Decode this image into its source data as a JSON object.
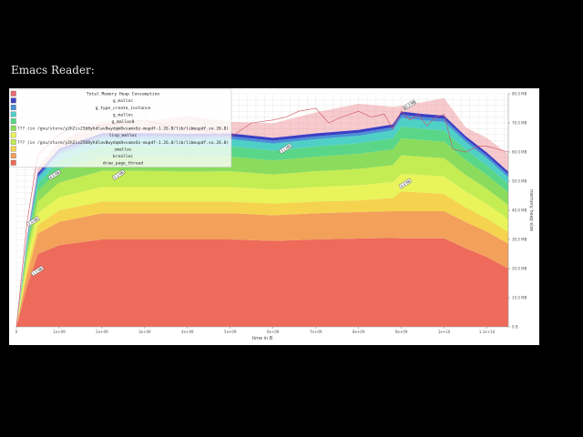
{
  "page": {
    "heading": "Emacs Reader:"
  },
  "chart_data": {
    "type": "area",
    "title": "Total Memory Heap Consumption",
    "xlabel": "time in B",
    "ylabel": "memory heap size",
    "x_tick_labels": [
      "0",
      "1e+09",
      "2e+09",
      "3e+09",
      "4e+09",
      "5e+09",
      "6e+09",
      "7e+09",
      "8e+09",
      "9e+09",
      "1e+10",
      "1.1e+10"
    ],
    "x_ticks": [
      0,
      1000000000.0,
      2000000000.0,
      3000000000.0,
      4000000000.0,
      5000000000.0,
      6000000000.0,
      7000000000.0,
      8000000000.0,
      9000000000.0,
      10000000000.0,
      11000000000.0
    ],
    "xlim": [
      0,
      11500000000.0
    ],
    "y_tick_labels": [
      "0 B",
      "10.0 MB",
      "20.0 MB",
      "30.0 MB",
      "40.0 MB",
      "50.0 MB",
      "60.0 MB",
      "70.0 MB",
      "80.0 MB"
    ],
    "y_ticks": [
      0,
      10,
      20,
      30,
      40,
      50,
      60,
      70,
      80
    ],
    "ylim": [
      0,
      80
    ],
    "y_unit": "MB",
    "grid": true,
    "legend_position": "top-left",
    "x": [
      0,
      250000000.0,
      500000000.0,
      1000000000.0,
      2000000000.0,
      3000000000.0,
      4000000000.0,
      5000000000.0,
      6000000000.0,
      7000000000.0,
      8000000000.0,
      8800000000.0,
      9000000000.0,
      9500000000.0,
      10000000000.0,
      10500000000.0,
      11000000000.0,
      11500000000.0
    ],
    "series": [
      {
        "name": "draw_page_thread",
        "color": "#ee6a5a",
        "values": [
          0,
          14,
          25,
          28,
          30,
          30,
          30,
          30,
          29.5,
          30,
          30.3,
          30.5,
          30.4,
          30.4,
          30.4,
          27,
          24,
          20
        ]
      },
      {
        "name": "kreallec",
        "color": "#f2a05a",
        "values": [
          0,
          4,
          7,
          8,
          9,
          9,
          9,
          9,
          8.8,
          9,
          9.1,
          9.2,
          9.3,
          9.3,
          9.3,
          9,
          8.7,
          8.5
        ]
      },
      {
        "name": "zmalloc",
        "color": "#f5d34e",
        "values": [
          0,
          2,
          3,
          4,
          4,
          4,
          4,
          4,
          4,
          4,
          4,
          4.5,
          6.8,
          6.4,
          5.9,
          5,
          4.5,
          4
        ]
      },
      {
        "name": "lisp_malloc",
        "color": "#e8f45a",
        "values": [
          0,
          2.5,
          4,
          4.5,
          5,
          5,
          5,
          5,
          4.8,
          5,
          5.2,
          5.5,
          6,
          6,
          6,
          5.5,
          5,
          4.5
        ]
      },
      {
        "name": "??? (in /gnu/store/y2h2is2568yhdlav8wydqm8vsamx6z-mupdf-1.26.8/lib/libmupdf.so.26.8)",
        "color": "#c4ec53",
        "values": [
          0,
          2.5,
          4,
          5,
          5.5,
          5.5,
          5.3,
          5.4,
          5.2,
          5.4,
          5.6,
          5.8,
          6.4,
          6.3,
          6.3,
          5.7,
          5.2,
          4.8
        ]
      },
      {
        "name": "??? (in /gnu/store/y2h2is2568yhdlav8wydqm8vsamx6z-mupdf-1.26.8/lib/libmupdf.so.26.8)",
        "color": "#8bdc5c",
        "values": [
          0,
          2,
          3.5,
          4.5,
          5,
          5,
          5,
          5,
          4.8,
          5,
          5.2,
          5.4,
          5.8,
          5.7,
          5.6,
          5.1,
          4.7,
          4.3
        ]
      },
      {
        "name": "g_malloc0",
        "color": "#5ad688",
        "values": [
          0,
          1.5,
          2.5,
          3,
          3.5,
          3.5,
          3.5,
          3.5,
          3.4,
          3.5,
          3.6,
          3.8,
          4,
          3.9,
          3.9,
          3.6,
          3.3,
          3
        ]
      },
      {
        "name": "g_malloc",
        "color": "#4fd0c6",
        "values": [
          0,
          1,
          2,
          2.3,
          2.5,
          2.5,
          2.5,
          2.5,
          2.4,
          2.5,
          2.6,
          2.8,
          3,
          2.9,
          2.9,
          2.6,
          2.4,
          2.2
        ]
      },
      {
        "name": "g_type_create_instance",
        "color": "#4a90d6",
        "values": [
          0,
          0.5,
          0.8,
          0.9,
          1,
          1,
          1,
          1,
          1,
          1,
          1,
          1,
          1.1,
          1.1,
          1.1,
          1,
          1,
          1
        ]
      },
      {
        "name": "g_malloc",
        "color": "#3b3fc4",
        "values": [
          0,
          0.6,
          0.9,
          1,
          1,
          1,
          1,
          1,
          1,
          1,
          1,
          1,
          1.1,
          1.1,
          1.1,
          1,
          1,
          1
        ]
      },
      {
        "name": "Total Memory Heap Consumption",
        "color": "#e86a72",
        "values": [
          0,
          1,
          2,
          2.5,
          4,
          4,
          6,
          4,
          5,
          7.2,
          9,
          6,
          2,
          4,
          6,
          3,
          5,
          6
        ]
      }
    ],
    "total_points": {
      "x": [
        0,
        250000000.0,
        500000000.0,
        1000000000.0,
        1500000000.0,
        2000000000.0,
        2500000000.0,
        3000000000.0,
        3500000000.0,
        4000000000.0,
        4500000000.0,
        5000000000.0,
        5500000000.0,
        6000000000.0,
        6300000000.0,
        6600000000.0,
        7000000000.0,
        7300000000.0,
        7600000000.0,
        8000000000.0,
        8300000000.0,
        8600000000.0,
        8800000000.0,
        9000000000.0,
        9200000000.0,
        9400000000.0,
        9600000000.0,
        9800000000.0,
        10000000000.0,
        10200000000.0,
        10500000000.0,
        10800000000.0,
        11000000000.0,
        11500000000.0
      ],
      "y": [
        0,
        36,
        59,
        66,
        70,
        69,
        70,
        71,
        69,
        68,
        67,
        65,
        70,
        71,
        72,
        74,
        75,
        70,
        72,
        74,
        72,
        73,
        68,
        74,
        71,
        73,
        69,
        72,
        73,
        61,
        60,
        62,
        62,
        60
      ]
    },
    "legend": [
      {
        "name": "Total Memory Heap Consumption",
        "color": "#e86a72"
      },
      {
        "name": "g_malloc",
        "color": "#3b3fc4"
      },
      {
        "name": "g_type_create_instance",
        "color": "#4a90d6"
      },
      {
        "name": "g_malloc",
        "color": "#4fd0c6"
      },
      {
        "name": "g_malloc0",
        "color": "#5ad688"
      },
      {
        "name": "??? (in /gnu/store/y2h2is2568yhdlav8wydqm8vsamx6z-mupdf-1.26.8/lib/libmupdf.so.26.8)",
        "color": "#8bdc5c"
      },
      {
        "name": "lisp_malloc",
        "color": "#e8f45a"
      },
      {
        "name": "??? (in /gnu/store/y2h2is2568yhdlav8wydqm8vsamx6z-mupdf-1.26.8/lib/libmupdf.so.26.8)",
        "color": "#c4ec53"
      },
      {
        "name": "zmalloc",
        "color": "#f5d34e"
      },
      {
        "name": "kreallec",
        "color": "#f2a05a"
      },
      {
        "name": "draw_page_thread",
        "color": "#ee6a5a"
      }
    ],
    "peak_labels": [
      "65.3 MB",
      "2.4 MB",
      "6.6 MB",
      "5.2 MB",
      "3.1 MB",
      "4.4 MB",
      "1.5 MB"
    ]
  }
}
